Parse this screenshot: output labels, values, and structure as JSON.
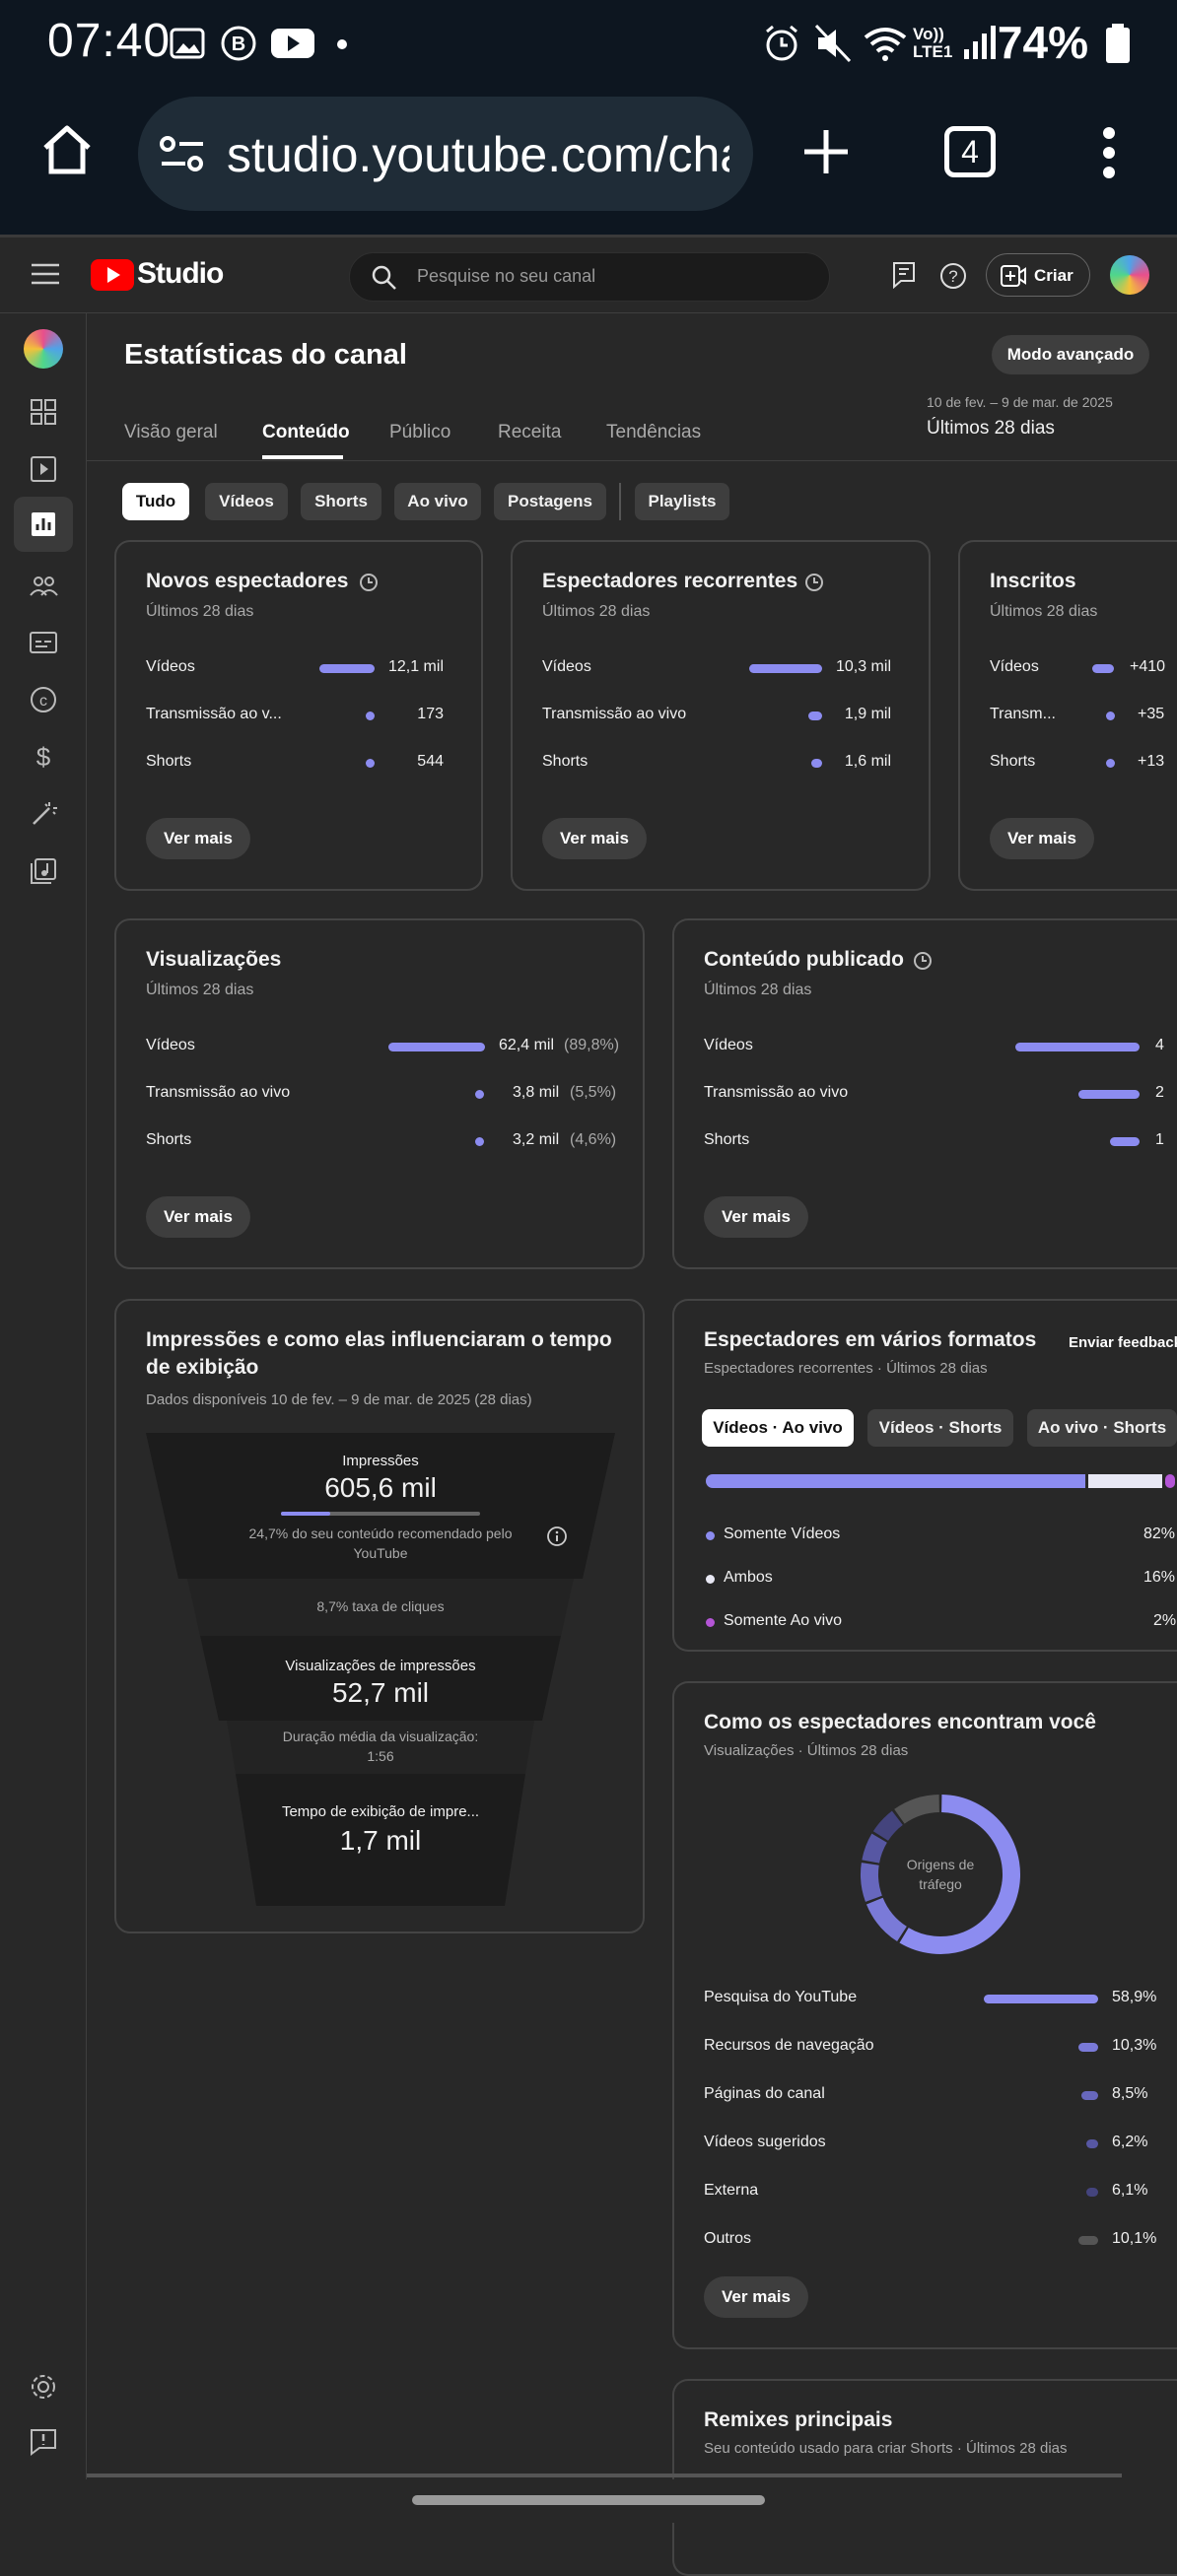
{
  "status_bar": {
    "time": "07:40",
    "battery": "74%",
    "network": "Vo)) LTE1"
  },
  "browser": {
    "url": "studio.youtube.com/cha",
    "tab_count": "4"
  },
  "header": {
    "brand": "Studio",
    "search_placeholder": "Pesquise no seu canal",
    "create_label": "Criar"
  },
  "page": {
    "title": "Estatísticas do canal",
    "advanced_mode": "Modo avançado",
    "date_range": "10 de fev. – 9 de mar. de 2025",
    "period": "Últimos 28 dias",
    "tabs": [
      "Visão geral",
      "Conteúdo",
      "Público",
      "Receita",
      "Tendências"
    ],
    "active_tab": "Conteúdo",
    "chips": [
      "Tudo",
      "Vídeos",
      "Shorts",
      "Ao vivo",
      "Postagens",
      "Playlists"
    ],
    "active_chip": "Tudo"
  },
  "cards": {
    "new_viewers": {
      "title": "Novos espectadores",
      "subtitle": "Últimos 28 dias",
      "rows": [
        {
          "label": "Vídeos",
          "value": "12,1 mil",
          "share": 0.93
        },
        {
          "label": "Transmissão ao v...",
          "value": "173",
          "share": 0.01
        },
        {
          "label": "Shorts",
          "value": "544",
          "share": 0.04
        }
      ],
      "more": "Ver mais"
    },
    "returning_viewers": {
      "title": "Espectadores recorrentes",
      "subtitle": "Últimos 28 dias",
      "rows": [
        {
          "label": "Vídeos",
          "value": "10,3 mil",
          "share": 0.74
        },
        {
          "label": "Transmissão ao vivo",
          "value": "1,9 mil",
          "share": 0.14
        },
        {
          "label": "Shorts",
          "value": "1,6 mil",
          "share": 0.12
        }
      ],
      "more": "Ver mais"
    },
    "subscribers": {
      "title": "Inscritos",
      "subtitle": "Últimos 28 dias",
      "rows": [
        {
          "label": "Vídeos",
          "value": "+410",
          "share": 0.89
        },
        {
          "label": "Transm...",
          "value": "+35",
          "share": 0.08
        },
        {
          "label": "Shorts",
          "value": "+13",
          "share": 0.03
        }
      ],
      "more": "Ver mais"
    },
    "views": {
      "title": "Visualizações",
      "subtitle": "Últimos 28 dias",
      "rows": [
        {
          "label": "Vídeos",
          "value": "62,4 mil",
          "pct": "(89,8%)",
          "share": 0.898
        },
        {
          "label": "Transmissão ao vivo",
          "value": "3,8 mil",
          "pct": "(5,5%)",
          "share": 0.055
        },
        {
          "label": "Shorts",
          "value": "3,2 mil",
          "pct": "(4,6%)",
          "share": 0.046
        }
      ],
      "more": "Ver mais"
    },
    "published": {
      "title": "Conteúdo publicado",
      "subtitle": "Últimos 28 dias",
      "rows": [
        {
          "label": "Vídeos",
          "value": "4"
        },
        {
          "label": "Transmissão ao vivo",
          "value": "2"
        },
        {
          "label": "Shorts",
          "value": "1"
        }
      ],
      "more": "Ver mais"
    },
    "impressions": {
      "title_line1": "Impressões e como elas influenciaram o tempo",
      "title_line2": "de exibição",
      "subtitle": "Dados disponíveis 10 de fev. – 9 de mar. de 2025 (28 dias)",
      "impressions_label": "Impressões",
      "impressions_value": "605,6 mil",
      "recommended_share": 0.247,
      "recommended_line1": "24,7% do seu conteúdo recomendado pelo",
      "recommended_line2": "YouTube",
      "ctr": "8,7% taxa de cliques",
      "views_label": "Visualizações de impressões",
      "views_value": "52,7 mil",
      "avg_label": "Duração média da visualização:",
      "avg_value": "1:56",
      "watch_label": "Tempo de exibição de impre...",
      "watch_value": "1,7 mil"
    },
    "formats": {
      "title": "Espectadores em vários formatos",
      "feedback": "Enviar feedback",
      "subtitle": "Espectadores recorrentes · Últimos 28 dias",
      "chips": [
        "Vídeos · Ao vivo",
        "Vídeos · Shorts",
        "Ao vivo · Shorts"
      ],
      "active_chip": "Vídeos · Ao vivo",
      "legend": [
        {
          "label": "Somente Vídeos",
          "value": "82%",
          "share": 0.82,
          "color": "#8c8cf0"
        },
        {
          "label": "Ambos",
          "value": "16%",
          "share": 0.16,
          "color": "#e8e8f4"
        },
        {
          "label": "Somente Ao vivo",
          "value": "2%",
          "share": 0.02,
          "color": "#b455d6"
        }
      ]
    },
    "traffic": {
      "title": "Como os espectadores encontram você",
      "subtitle": "Visualizações · Últimos 28 dias",
      "center_line1": "Origens de",
      "center_line2": "tráfego",
      "rows": [
        {
          "label": "Pesquisa do YouTube",
          "value": "58,9%",
          "share": 0.589,
          "color": "#8c8cf0"
        },
        {
          "label": "Recursos de navegação",
          "value": "10,3%",
          "share": 0.103,
          "color": "#7a7ad8"
        },
        {
          "label": "Páginas do canal",
          "value": "8,5%",
          "share": 0.085,
          "color": "#6767bd"
        },
        {
          "label": "Vídeos sugeridos",
          "value": "6,2%",
          "share": 0.062,
          "color": "#5757a3"
        },
        {
          "label": "Externa",
          "value": "6,1%",
          "share": 0.061,
          "color": "#44447d"
        },
        {
          "label": "Outros",
          "value": "10,1%",
          "share": 0.101,
          "color": "#555555"
        }
      ],
      "more": "Ver mais"
    },
    "remixes": {
      "title": "Remixes principais",
      "subtitle": "Seu conteúdo usado para criar Shorts · Últimos 28 dias"
    }
  }
}
